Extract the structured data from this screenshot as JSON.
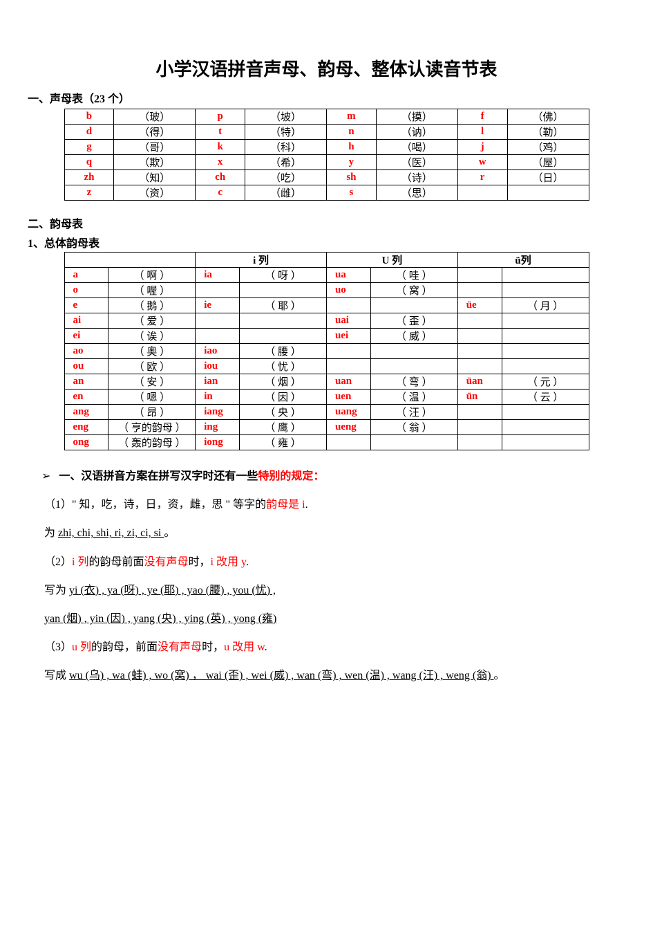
{
  "colors": {
    "accent": "#ff0000",
    "text": "#000000",
    "bg": "#ffffff",
    "border": "#000000"
  },
  "typography": {
    "title_fontsize": 26,
    "body_fontsize": 16,
    "table_fontsize": 15,
    "line_height": 2.2
  },
  "title": "小学汉语拼音声母、韵母、整体认读音节表",
  "section1": {
    "header": "一、声母表（23 个）",
    "table": {
      "type": "table",
      "columns": 8,
      "col_roles": [
        "pinyin",
        "char",
        "pinyin",
        "char",
        "pinyin",
        "char",
        "pinyin",
        "char"
      ],
      "pinyin_color": "#ff0000",
      "rows": [
        [
          "b",
          "（玻）",
          "p",
          "（坡）",
          "m",
          "（摸）",
          "f",
          "（佛）"
        ],
        [
          "d",
          "（得）",
          "t",
          "（特）",
          "n",
          "（讷）",
          "l",
          "（勒）"
        ],
        [
          "g",
          "（哥）",
          "k",
          "（科）",
          "h",
          "（喝）",
          "j",
          "（鸡）"
        ],
        [
          "q",
          "（欺）",
          "x",
          "（希）",
          "y",
          "（医）",
          "w",
          "（屋）"
        ],
        [
          "zh",
          "（知）",
          "ch",
          "（吃）",
          "sh",
          "（诗）",
          "r",
          "（日）"
        ],
        [
          "z",
          "（资）",
          "c",
          "（雌）",
          "s",
          "（思）",
          "",
          ""
        ]
      ]
    }
  },
  "section2": {
    "header": "二、韵母表",
    "sub1_header": "1、总体韵母表",
    "table": {
      "type": "table",
      "pinyin_color": "#ff0000",
      "header_row": [
        "",
        "i 列",
        "U 列",
        "ü列"
      ],
      "rows": [
        [
          {
            "py": "a",
            "ch": "（ 啊 ）"
          },
          {
            "py": "ia",
            "ch": "（ 呀 ）"
          },
          {
            "py": "ua",
            "ch": "（ 哇 ）"
          },
          {
            "py": "",
            "ch": ""
          }
        ],
        [
          {
            "py": "o",
            "ch": "（ 喔 ）"
          },
          {
            "py": "",
            "ch": ""
          },
          {
            "py": "uo",
            "ch": "（ 窝 ）"
          },
          {
            "py": "",
            "ch": ""
          }
        ],
        [
          {
            "py": "e",
            "ch": "（ 鹅 ）"
          },
          {
            "py": "ie",
            "ch": "（ 耶 ）"
          },
          {
            "py": "",
            "ch": ""
          },
          {
            "py": "üe",
            "ch": "（ 月 ）"
          }
        ],
        [
          {
            "py": "ai",
            "ch": "（ 爱 ）"
          },
          {
            "py": "",
            "ch": ""
          },
          {
            "py": "uai",
            "ch": "（ 歪 ）"
          },
          {
            "py": "",
            "ch": ""
          }
        ],
        [
          {
            "py": "ei",
            "ch": "（ 诶 ）"
          },
          {
            "py": "",
            "ch": ""
          },
          {
            "py": "uei",
            "ch": "（ 威 ）"
          },
          {
            "py": "",
            "ch": ""
          }
        ],
        [
          {
            "py": "ao",
            "ch": "（ 奥 ）"
          },
          {
            "py": "iao",
            "ch": "（ 腰 ）"
          },
          {
            "py": "",
            "ch": ""
          },
          {
            "py": "",
            "ch": ""
          }
        ],
        [
          {
            "py": "ou",
            "ch": "（ 欧 ）"
          },
          {
            "py": "iou",
            "ch": "（ 忧 ）"
          },
          {
            "py": "",
            "ch": ""
          },
          {
            "py": "",
            "ch": ""
          }
        ],
        [
          {
            "py": "an",
            "ch": "（ 安 ）"
          },
          {
            "py": "ian",
            "ch": "（ 烟 ）"
          },
          {
            "py": "uan",
            "ch": "（ 弯 ）"
          },
          {
            "py": "üan",
            "ch": "（ 元 ）"
          }
        ],
        [
          {
            "py": "en",
            "ch": "（ 嗯 ）"
          },
          {
            "py": "in",
            "ch": "（ 因 ）"
          },
          {
            "py": "uen",
            "ch": "（ 温 ）"
          },
          {
            "py": "ün",
            "ch": "（ 云 ）"
          }
        ],
        [
          {
            "py": "ang",
            "ch": "（ 昂 ）"
          },
          {
            "py": "iang",
            "ch": "（ 央 ）"
          },
          {
            "py": "uang",
            "ch": "（ 汪 ）"
          },
          {
            "py": "",
            "ch": ""
          }
        ],
        [
          {
            "py": "eng",
            "ch": "（ 亨的韵母 ）"
          },
          {
            "py": "ing",
            "ch": "（ 鹰 ）"
          },
          {
            "py": "ueng",
            "ch": "（ 翁 ）"
          },
          {
            "py": "",
            "ch": ""
          }
        ],
        [
          {
            "py": "ong",
            "ch": "（ 轰的韵母 ）"
          },
          {
            "py": "iong",
            "ch": "（ 雍 ）"
          },
          {
            "py": "",
            "ch": ""
          },
          {
            "py": "",
            "ch": ""
          }
        ]
      ]
    }
  },
  "notes": {
    "bullet": "➢",
    "heading_pre": "一、汉语拼音方案在拼写汉字时还有一些",
    "heading_red": "特别的规定：",
    "n1_pre": "（1）",
    "n1_quote": "\" 知，吃，诗，日，资，雌，思 \"",
    "n1_mid": " 等字的",
    "n1_red": "韵母是 i",
    "n1_end": ".",
    "n1_wei": "为 ",
    "n1_ul": " zhi, chi, shi, ri, zi, ci, si ",
    "n1_period": "。",
    "n2_pre": "（2）",
    "n2_red1": "i 列",
    "n2_mid1": "的韵母前面",
    "n2_red2": "没有声母",
    "n2_mid2": "时，",
    "n2_red3": "i 改用 y",
    "n2_end": ".",
    "n2_l1": "写为 ",
    "n2_ul1": "yi (衣) , ya (呀) ,  ye (耶) , yao (腰) , you (忧) ,",
    "n2_ul2": "yan (烟) , yin (因) , yang (央) , ying (英) , yong (雍)",
    "n3_pre": "（3）",
    "n3_red1": "u 列",
    "n3_mid1": "的韵母，前面",
    "n3_red2": "没有声母",
    "n3_mid2": "时，",
    "n3_red3": "u 改用 w",
    "n3_end": ".",
    "n3_l1": "写成 ",
    "n3_ul1": "wu (乌) , wa (蛙) , wo (窝) ， wai (歪) , wei (威) , wan (弯) , wen (温) , wang (汪) , weng (翁) ",
    "n3_period": "。"
  }
}
